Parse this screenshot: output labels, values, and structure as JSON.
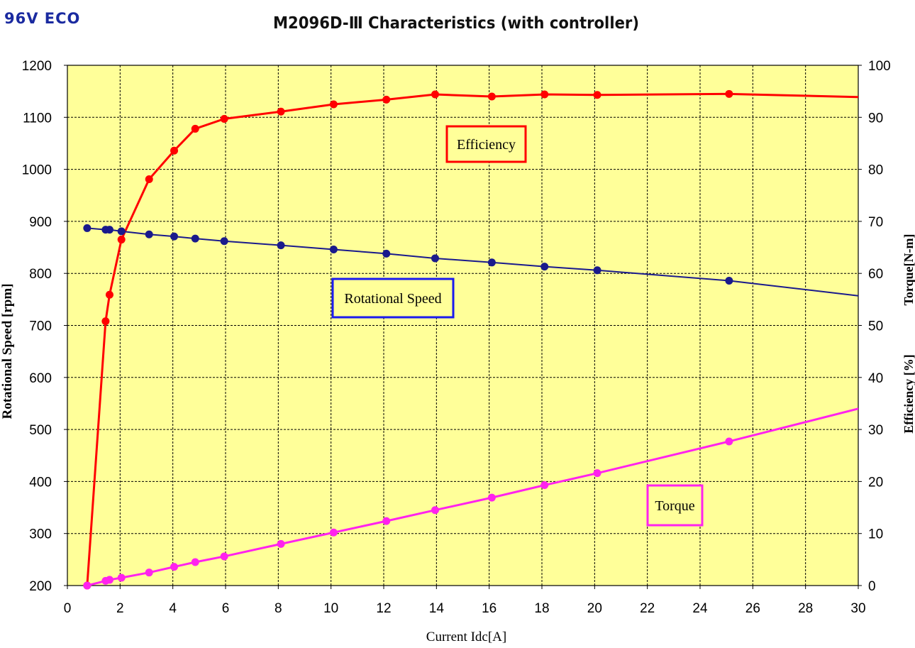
{
  "corner_label": "96V ECO",
  "chart_data": {
    "type": "line",
    "title": "M2096D-Ⅲ Characteristics (with controller)",
    "xlabel": "Current Idc[A]",
    "ylabel_left": "Rotational Speed [rpm]",
    "ylabel_right": [
      "Torque[N-m]",
      "Efficiency [%]"
    ],
    "xlim": [
      0,
      30
    ],
    "ylim_left": [
      200,
      1200
    ],
    "ylim_right": [
      0,
      100
    ],
    "x_ticks": [
      "0",
      "2",
      "4",
      "6",
      "8",
      "10",
      "12",
      "14",
      "16",
      "18",
      "20",
      "22",
      "24",
      "26",
      "28",
      "30"
    ],
    "y_left_ticks": [
      "200",
      "300",
      "400",
      "500",
      "600",
      "700",
      "800",
      "900",
      "1000",
      "1100",
      "1200"
    ],
    "y_right_ticks": [
      "0",
      "10",
      "20",
      "30",
      "40",
      "50",
      "60",
      "70",
      "80",
      "90",
      "100"
    ],
    "grid": true,
    "background": "#ffff99",
    "series": [
      {
        "name": "Efficiency",
        "axis": "right",
        "color": "#ff0000",
        "x": [
          0.75,
          1.45,
          1.6,
          2.05,
          3.1,
          4.05,
          4.85,
          5.95,
          8.1,
          10.1,
          12.1,
          13.95,
          16.1,
          18.1,
          20.1,
          25.1
        ],
        "y": [
          0,
          50.8,
          55.9,
          66.5,
          78.1,
          83.6,
          87.8,
          89.7,
          91.1,
          92.5,
          93.4,
          94.4,
          94.0,
          94.4,
          94.3,
          94.5
        ],
        "line_end": [
          30,
          93.9
        ]
      },
      {
        "name": "Rotational Speed",
        "axis": "left",
        "color": "#1a1a8c",
        "x": [
          0.75,
          1.45,
          1.6,
          2.05,
          3.1,
          4.05,
          4.85,
          5.95,
          8.1,
          10.1,
          12.1,
          13.95,
          16.1,
          18.1,
          20.1,
          25.1
        ],
        "y": [
          887,
          884,
          884,
          881,
          875,
          871,
          867,
          862,
          854,
          846,
          838,
          829,
          821,
          813,
          806,
          786
        ],
        "line_end": [
          30,
          757
        ]
      },
      {
        "name": "Torque",
        "axis": "right",
        "color": "#ff22ee",
        "x": [
          0.75,
          1.45,
          1.6,
          2.05,
          3.1,
          4.05,
          4.85,
          5.95,
          8.1,
          10.1,
          12.1,
          13.95,
          16.1,
          18.1,
          20.1,
          25.1
        ],
        "y": [
          0,
          0.9,
          1.1,
          1.5,
          2.5,
          3.6,
          4.5,
          5.6,
          8.0,
          10.2,
          12.4,
          14.5,
          16.9,
          19.3,
          21.6,
          27.7
        ],
        "line_end": [
          30,
          34.0
        ]
      }
    ],
    "annotations": [
      {
        "text": "Efficiency",
        "box_color": "#ff0000"
      },
      {
        "text": "Rotational Speed",
        "box_color": "#1a1aee"
      },
      {
        "text": "Torque",
        "box_color": "#ff22ee"
      }
    ]
  }
}
